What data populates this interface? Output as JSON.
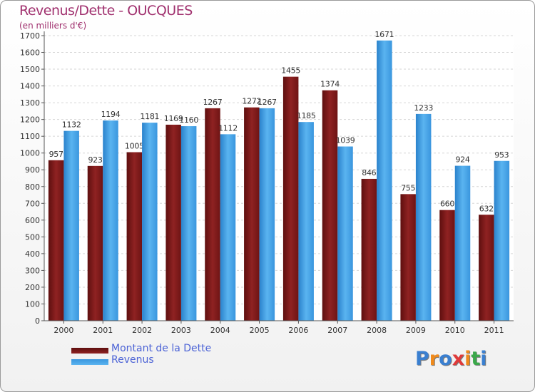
{
  "chart_data": {
    "type": "bar",
    "title": "Revenus/Dette - OUCQUES",
    "subtitle": "(en milliers d'€)",
    "categories": [
      "2000",
      "2001",
      "2002",
      "2003",
      "2004",
      "2005",
      "2006",
      "2007",
      "2008",
      "2009",
      "2010",
      "2011"
    ],
    "series": [
      {
        "name": "Montant de la Dette",
        "color": "#8b1a1a",
        "values": [
          957,
          923,
          1005,
          1169,
          1267,
          1272,
          1455,
          1374,
          846,
          755,
          660,
          632
        ]
      },
      {
        "name": "Revenus",
        "color": "#3d9be0",
        "values": [
          1132,
          1194,
          1181,
          1160,
          1112,
          1267,
          1185,
          1039,
          1671,
          1233,
          924,
          953
        ]
      }
    ],
    "ylim": [
      0,
      1700
    ],
    "ytick_step": 100,
    "grid": true,
    "legend": "bottom-left"
  },
  "logo": {
    "letters": [
      "P",
      "r",
      "o",
      "x",
      "i",
      "t",
      "i"
    ],
    "colors": [
      "#3a7fd0",
      "#f08a1c",
      "#3a7fd0",
      "#e03a3a",
      "#f08a1c",
      "#3aa84a",
      "#3a7fd0"
    ]
  }
}
